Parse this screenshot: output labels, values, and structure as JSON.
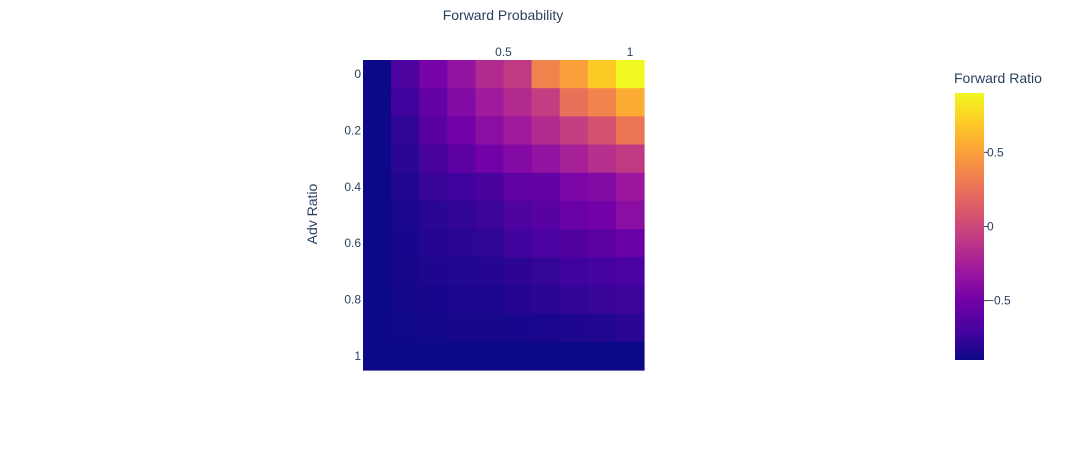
{
  "chart_data": {
    "type": "heatmap",
    "title": "",
    "xlabel": "Forward Probability",
    "ylabel": "Adv Ratio",
    "x": [
      0,
      0.1111,
      0.2222,
      0.3333,
      0.4444,
      0.5556,
      0.6667,
      0.7778,
      0.8889,
      1
    ],
    "y": [
      0,
      0.1,
      0.2,
      0.3,
      0.4,
      0.5,
      0.6,
      0.7,
      0.8,
      0.9,
      1
    ],
    "xlim": [
      0,
      1
    ],
    "ylim": [
      0,
      1
    ],
    "x_axis_position": "top",
    "y_axis_reversed": true,
    "xticks": [
      0.5,
      1
    ],
    "xtick_labels": [
      "0.5",
      "1"
    ],
    "yticks": [
      0,
      0.2,
      0.4,
      0.6,
      0.8,
      1
    ],
    "ytick_labels": [
      "0",
      "0.2",
      "0.4",
      "0.6",
      "0.8",
      "1"
    ],
    "z": [
      [
        -0.9,
        -0.67,
        -0.48,
        -0.35,
        -0.18,
        -0.08,
        0.35,
        0.5,
        0.7,
        0.9
      ],
      [
        -0.9,
        -0.72,
        -0.56,
        -0.42,
        -0.28,
        -0.18,
        -0.06,
        0.25,
        0.35,
        0.56
      ],
      [
        -0.9,
        -0.78,
        -0.62,
        -0.5,
        -0.38,
        -0.28,
        -0.18,
        -0.06,
        0.07,
        0.28
      ],
      [
        -0.9,
        -0.8,
        -0.69,
        -0.6,
        -0.5,
        -0.42,
        -0.35,
        -0.24,
        -0.15,
        -0.08
      ],
      [
        -0.9,
        -0.83,
        -0.75,
        -0.72,
        -0.69,
        -0.58,
        -0.56,
        -0.45,
        -0.42,
        -0.3
      ],
      [
        -0.9,
        -0.85,
        -0.8,
        -0.77,
        -0.74,
        -0.66,
        -0.62,
        -0.54,
        -0.5,
        -0.38
      ],
      [
        -0.9,
        -0.86,
        -0.82,
        -0.8,
        -0.78,
        -0.72,
        -0.68,
        -0.64,
        -0.6,
        -0.54
      ],
      [
        -0.9,
        -0.87,
        -0.84,
        -0.83,
        -0.82,
        -0.79,
        -0.76,
        -0.72,
        -0.7,
        -0.68
      ],
      [
        -0.9,
        -0.88,
        -0.86,
        -0.85,
        -0.84,
        -0.82,
        -0.8,
        -0.77,
        -0.75,
        -0.73
      ],
      [
        -0.9,
        -0.89,
        -0.88,
        -0.87,
        -0.87,
        -0.86,
        -0.85,
        -0.84,
        -0.83,
        -0.8
      ],
      [
        -0.9,
        -0.9,
        -0.9,
        -0.9,
        -0.9,
        -0.9,
        -0.9,
        -0.9,
        -0.9,
        -0.9
      ]
    ],
    "zlim": [
      -0.9,
      0.9
    ],
    "colorscale": [
      "#0d0887",
      "#46039f",
      "#7201a8",
      "#9c179e",
      "#bd3786",
      "#d8576b",
      "#ed7953",
      "#fb9f3a",
      "#fdca26",
      "#f0f921"
    ],
    "colorbar": {
      "title": "Forward Ratio",
      "ticks": [
        0.5,
        0,
        -0.5
      ],
      "tick_labels": [
        "0.5",
        "0",
        "−0.5"
      ]
    },
    "grid": false,
    "legend": "colorbar-right"
  }
}
